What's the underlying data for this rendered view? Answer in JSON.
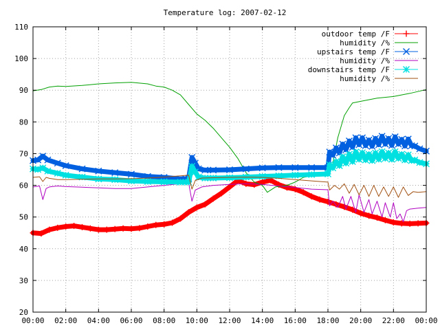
{
  "chart_data": {
    "type": "line",
    "title": "Temperature log: 2007-02-12",
    "xlabel": "",
    "ylabel": "",
    "x_ticks": [
      "00:00",
      "02:00",
      "04:00",
      "06:00",
      "08:00",
      "10:00",
      "12:00",
      "14:00",
      "16:00",
      "18:00",
      "20:00",
      "22:00",
      "00:00"
    ],
    "xlim": [
      0,
      24
    ],
    "ylim": [
      20,
      110
    ],
    "y_ticks": [
      20,
      30,
      40,
      50,
      60,
      70,
      80,
      90,
      100,
      110
    ],
    "grid": true,
    "legend_position": "top-right",
    "series": [
      {
        "name": "outdoor temp /F",
        "color": "#ff0000",
        "marker": "plus",
        "thick": true,
        "x": [
          0,
          0.5,
          1,
          1.5,
          2,
          2.5,
          3,
          3.5,
          4,
          4.5,
          5,
          5.5,
          6,
          6.5,
          7,
          7.5,
          8,
          8.5,
          9,
          9.5,
          10,
          10.5,
          11,
          11.5,
          12,
          12.5,
          13,
          13.5,
          14,
          14.5,
          15,
          15.5,
          16,
          16.5,
          17,
          17.5,
          18,
          18.5,
          19,
          19.5,
          20,
          20.5,
          21,
          21.5,
          22,
          22.5,
          23,
          23.5,
          24
        ],
        "values": [
          45,
          44.8,
          46,
          46.6,
          47,
          47.2,
          46.8,
          46.4,
          46,
          46,
          46.2,
          46.4,
          46.3,
          46.5,
          47,
          47.5,
          47.7,
          48.2,
          49.5,
          51.5,
          53,
          54,
          55.8,
          57.5,
          59.5,
          61.5,
          60.5,
          60.2,
          61,
          61.6,
          60.2,
          59.3,
          58.8,
          57.8,
          56.5,
          55.5,
          54.8,
          54,
          53.2,
          52.3,
          51.2,
          50.4,
          49.8,
          49,
          48.3,
          48,
          47.9,
          48,
          48.1
        ]
      },
      {
        "name": "humidity /%",
        "color": "#00a000",
        "marker": "none",
        "thick": false,
        "x": [
          0,
          0.5,
          1,
          1.5,
          2,
          3,
          4,
          5,
          6,
          7,
          7.5,
          8,
          8.5,
          9,
          9.5,
          10,
          10.5,
          11,
          11.5,
          12,
          12.5,
          13,
          13.5,
          14,
          14.3,
          14.8,
          15.5,
          16,
          16.5,
          17,
          17.5,
          18,
          18.3,
          18.6,
          19,
          19.3,
          19.5,
          20,
          21,
          22,
          23,
          24
        ],
        "values": [
          89.8,
          90.2,
          91,
          91.3,
          91.2,
          91.5,
          92,
          92.3,
          92.5,
          92,
          91.3,
          91,
          90,
          88.5,
          85.5,
          82.5,
          80.5,
          78,
          75,
          72,
          68.5,
          64,
          61,
          60,
          57.8,
          59.5,
          60,
          61,
          62.5,
          63,
          63.5,
          64,
          67,
          75,
          82,
          84.5,
          86,
          86.5,
          87.5,
          88,
          89,
          90.2
        ]
      },
      {
        "name": "upstairs temp /F",
        "color": "#0060e0",
        "marker": "x",
        "thick": true,
        "x": [
          0,
          0.3,
          0.6,
          0.9,
          1.5,
          2,
          3,
          4,
          5,
          6,
          7,
          8,
          9,
          9.5,
          9.7,
          9.9,
          10.1,
          10.5,
          11,
          12,
          13,
          14,
          15,
          16,
          17,
          18,
          18.1,
          18.3,
          18.5,
          18.7,
          18.9,
          19.1,
          19.3,
          19.5,
          19.7,
          19.9,
          20.1,
          20.3,
          20.5,
          20.7,
          20.9,
          21.1,
          21.3,
          21.5,
          21.7,
          21.9,
          22.1,
          22.3,
          22.5,
          22.7,
          22.9,
          23.1,
          23.3,
          23.6,
          24
        ],
        "values": [
          67.8,
          68,
          69.2,
          68,
          67,
          66.2,
          65.2,
          64.5,
          64,
          63.5,
          62.8,
          62.5,
          62,
          62.2,
          68.8,
          67,
          65.2,
          64.8,
          64.8,
          64.9,
          65.2,
          65.5,
          65.6,
          65.6,
          65.6,
          65.6,
          70.5,
          69.5,
          71.8,
          70.2,
          73,
          71.2,
          74,
          72,
          75,
          72.8,
          75,
          72.5,
          74.3,
          72.3,
          74.8,
          72.8,
          75.5,
          73,
          74.8,
          72.6,
          75.3,
          73,
          74.5,
          72.4,
          74.6,
          72.5,
          72.4,
          71.5,
          70.8
        ]
      },
      {
        "name": "humidity /%",
        "color": "#b000c0",
        "marker": "none",
        "thick": false,
        "x": [
          0,
          0.4,
          0.6,
          0.8,
          1,
          1.5,
          2,
          3,
          4,
          5,
          6,
          7,
          8,
          9,
          9.5,
          9.7,
          9.9,
          10.3,
          11,
          12,
          13,
          14,
          15,
          16,
          17,
          18,
          18.1,
          18.3,
          18.6,
          18.9,
          19.1,
          19.4,
          19.7,
          19.9,
          20.2,
          20.5,
          20.7,
          21,
          21.3,
          21.5,
          21.8,
          22,
          22.2,
          22.4,
          22.6,
          22.8,
          23,
          23.5,
          24
        ],
        "values": [
          59.5,
          59.8,
          55.5,
          59,
          59.5,
          59.8,
          59.6,
          59.4,
          59.2,
          59,
          59,
          59.5,
          60,
          60.5,
          60.8,
          55,
          58.5,
          59.5,
          60,
          60.3,
          60.5,
          60.3,
          59.8,
          59.3,
          58.8,
          58.6,
          53.5,
          55,
          53,
          56.5,
          52.5,
          56.5,
          51.5,
          57,
          51.5,
          55.5,
          51,
          55,
          50,
          54.5,
          50,
          54.5,
          49.5,
          51,
          48.5,
          52,
          52.5,
          52.8,
          53
        ]
      },
      {
        "name": "downstairs temp /F",
        "color": "#00e0e0",
        "marker": "star",
        "thick": true,
        "x": [
          0,
          0.3,
          0.6,
          0.9,
          1.5,
          2,
          3,
          4,
          5,
          6,
          7,
          8,
          9,
          9.5,
          9.7,
          9.9,
          10.1,
          10.5,
          11,
          12,
          13,
          14,
          15,
          16,
          17,
          18,
          18.1,
          18.3,
          18.5,
          18.7,
          18.9,
          19.1,
          19.3,
          19.5,
          19.7,
          19.9,
          20.1,
          20.3,
          20.5,
          20.7,
          20.9,
          21.1,
          21.3,
          21.5,
          21.7,
          21.9,
          22.1,
          22.3,
          22.5,
          22.7,
          22.9,
          23.1,
          23.3,
          23.6,
          24
        ],
        "values": [
          65.2,
          65,
          65.5,
          64.5,
          63.8,
          63.2,
          62.6,
          62,
          61.8,
          61.4,
          61.2,
          61.1,
          61,
          61,
          66,
          64.2,
          62.6,
          62.3,
          62.3,
          62.4,
          62.6,
          62.8,
          63,
          63.2,
          63.4,
          63.6,
          66.5,
          65.5,
          67.5,
          66.2,
          69,
          67,
          69.8,
          67.5,
          70.5,
          68.2,
          70.3,
          68,
          69.8,
          67.8,
          70.2,
          68.2,
          70.6,
          68.5,
          70.2,
          68.2,
          70.6,
          68.5,
          69.8,
          68,
          69.6,
          67.8,
          68,
          67.2,
          66.8
        ]
      },
      {
        "name": "humidity /%",
        "color": "#a05010",
        "marker": "none",
        "thick": false,
        "x": [
          0,
          0.4,
          0.6,
          0.8,
          1,
          1.5,
          2,
          3,
          4,
          5,
          6,
          7,
          8,
          9,
          9.5,
          9.7,
          9.9,
          10.3,
          11,
          12,
          13,
          14,
          15,
          16,
          17,
          18,
          18.1,
          18.4,
          18.7,
          19,
          19.3,
          19.6,
          19.9,
          20.2,
          20.5,
          20.8,
          21.1,
          21.4,
          21.7,
          22,
          22.3,
          22.6,
          22.9,
          23.2,
          23.5,
          24
        ],
        "values": [
          62.5,
          62.7,
          61.2,
          62.5,
          62.2,
          61.8,
          61.8,
          61.9,
          62,
          62,
          62.1,
          62.3,
          62.6,
          63,
          63.2,
          58.8,
          61.5,
          62.3,
          62.4,
          62.5,
          62.6,
          62.5,
          62.2,
          61.8,
          61.4,
          61,
          58.5,
          60,
          58.8,
          60.5,
          57.5,
          60.3,
          57,
          60,
          56.5,
          60,
          56.5,
          59.5,
          56.5,
          59.5,
          56.2,
          59.5,
          56.8,
          58,
          57.8,
          58
        ]
      }
    ]
  }
}
